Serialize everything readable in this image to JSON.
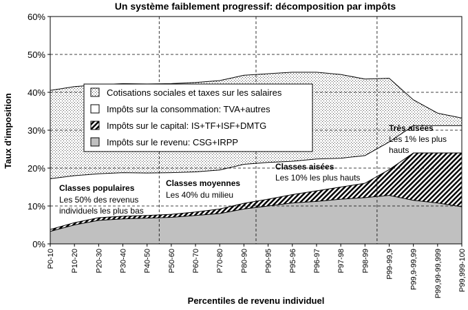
{
  "chart_data": {
    "type": "area",
    "title": "Un système faiblement progressif: décomposition par impôts",
    "xlabel": "Percentiles de revenu individuel",
    "ylabel": "Taux d'imposition",
    "ylim": [
      0,
      60
    ],
    "yticks": [
      "0%",
      "10%",
      "20%",
      "30%",
      "40%",
      "50%",
      "60%"
    ],
    "categories": [
      "P0-10",
      "P10-20",
      "P20-30",
      "P30-40",
      "P40-50",
      "P50-60",
      "P60-70",
      "P70-80",
      "P80-90",
      "P90-95",
      "P95-96",
      "P96-97",
      "P97-98",
      "P98-99",
      "P99-99,9",
      "P99,9-99,99",
      "P99,99-99,999",
      "P99,999-100"
    ],
    "series": [
      {
        "name": "Impôts sur le revenu: CSG+IRPP",
        "pattern": "grey",
        "values": [
          3.3,
          5,
          6.2,
          6.6,
          6.8,
          7,
          7.5,
          8,
          9.2,
          10,
          10.8,
          11.2,
          11.8,
          12.2,
          12.8,
          11.5,
          10.8,
          9.8
        ]
      },
      {
        "name": "Impôts sur le capital: IS+TF+ISF+DMTG",
        "pattern": "hatch",
        "values": [
          0.5,
          0.6,
          0.7,
          0.7,
          0.7,
          0.8,
          0.9,
          1.2,
          1.5,
          1.8,
          2.2,
          2.8,
          3.2,
          3.8,
          6.8,
          12.5,
          13.2,
          14.2
        ]
      },
      {
        "name": "Impôts sur la consommation: TVA+autres",
        "pattern": "white",
        "values": [
          13.4,
          12.4,
          11.6,
          11.5,
          11.2,
          11,
          10.6,
          10.3,
          10.3,
          9.7,
          8.8,
          8.4,
          7.6,
          7.3,
          7.3,
          7.2,
          7.2,
          7.2
        ]
      },
      {
        "name": "Cotisations sociales et taxes sur les salaires",
        "pattern": "dots",
        "values": [
          23.3,
          23.5,
          23.5,
          23.5,
          23.5,
          23.5,
          23.6,
          23.6,
          23.5,
          23.4,
          23.5,
          22.9,
          22.1,
          20.2,
          16.8,
          6.8,
          3.3,
          2
        ]
      }
    ],
    "legend": [
      "Cotisations sociales et taxes sur les salaires",
      "Impôts sur la consommation: TVA+autres",
      "Impôts sur le capital: IS+TF+ISF+DMTG",
      "Impôts sur le revenu: CSG+IRPP"
    ],
    "annotations": [
      {
        "title": "Classes populaires",
        "lines": [
          "Les 50% des revenus",
          "individuels les plus bas"
        ]
      },
      {
        "title": "Classes moyennes",
        "lines": [
          "Les 40% du milieu"
        ]
      },
      {
        "title": "Classes aisées",
        "lines": [
          "Les 10% les plus hauts"
        ]
      },
      {
        "title": "Très aisées",
        "lines": [
          "Les 1% les plus",
          "hauts"
        ]
      }
    ]
  }
}
